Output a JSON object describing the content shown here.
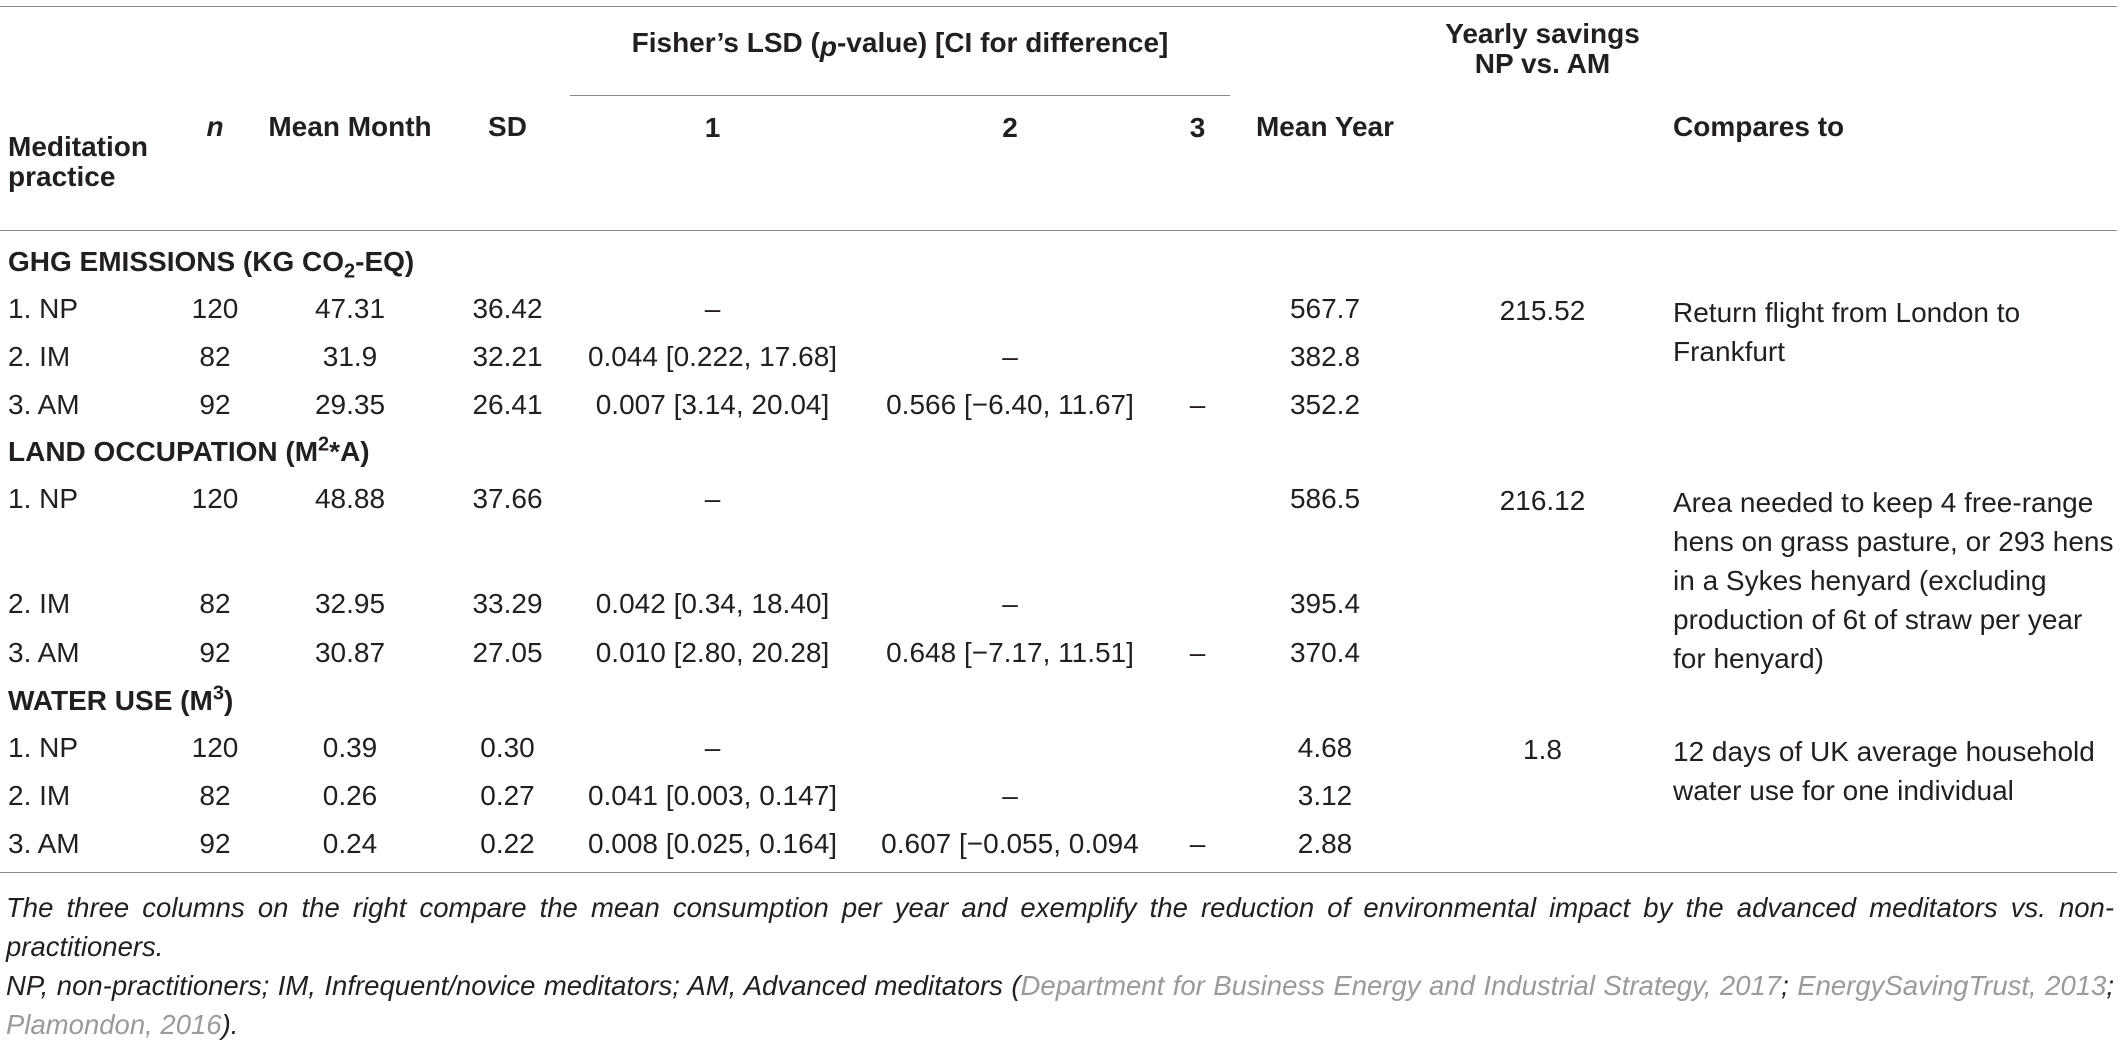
{
  "header": {
    "lsd_group": "Fisher’s LSD (",
    "lsd_p": "p",
    "lsd_tail": "-value) [CI for difference]",
    "yearly_savings_line1": "Yearly savings",
    "yearly_savings_line2": "NP vs. AM",
    "col_practice_line1": "Meditation",
    "col_practice_line2": "practice",
    "col_n": "n",
    "col_mean_month": "Mean Month",
    "col_sd": "SD",
    "col_1": "1",
    "col_2": "2",
    "col_3": "3",
    "col_mean_year": "Mean Year",
    "col_compares": "Compares to"
  },
  "sections": [
    {
      "title_pre": "GHG EMISSIONS (KG CO",
      "title_sub": "2",
      "title_post": "-EQ)",
      "rows": [
        {
          "practice": "1. NP",
          "n": "120",
          "mean_month": "47.31",
          "sd": "36.42",
          "c1": "–",
          "c2": "",
          "c3": "",
          "mean_year": "567.7"
        },
        {
          "practice": "2. IM",
          "n": "82",
          "mean_month": "31.9",
          "sd": "32.21",
          "c1": "0.044 [0.222, 17.68]",
          "c2": "–",
          "c3": "",
          "mean_year": "382.8"
        },
        {
          "practice": "3. AM",
          "n": "92",
          "mean_month": "29.35",
          "sd": "26.41",
          "c1": "0.007 [3.14, 20.04]",
          "c2": "0.566 [−6.40, 11.67]",
          "c3": "–",
          "mean_year": "352.2"
        }
      ],
      "savings": "215.52",
      "compares": "Return flight from London to Frankfurt"
    },
    {
      "title_pre": "LAND OCCUPATION (M",
      "title_sup": "2",
      "title_post": "*A)",
      "rows": [
        {
          "practice": "1. NP",
          "n": "120",
          "mean_month": "48.88",
          "sd": "37.66",
          "c1": "–",
          "c2": "",
          "c3": "",
          "mean_year": "586.5"
        },
        {
          "practice": "2. IM",
          "n": "82",
          "mean_month": "32.95",
          "sd": "33.29",
          "c1": "0.042 [0.34, 18.40]",
          "c2": "–",
          "c3": "",
          "mean_year": "395.4"
        },
        {
          "practice": "3. AM",
          "n": "92",
          "mean_month": "30.87",
          "sd": "27.05",
          "c1": "0.010 [2.80, 20.28]",
          "c2": "0.648 [−7.17, 11.51]",
          "c3": "–",
          "mean_year": "370.4"
        }
      ],
      "savings": "216.12",
      "compares": "Area needed to keep 4 free-range hens on grass pasture, or 293 hens in a Sykes henyard (excluding production of 6t of straw per year for henyard)"
    },
    {
      "title_pre": "WATER USE (M",
      "title_sup": "3",
      "title_post": ")",
      "rows": [
        {
          "practice": "1. NP",
          "n": "120",
          "mean_month": "0.39",
          "sd": "0.30",
          "c1": "–",
          "c2": "",
          "c3": "",
          "mean_year": "4.68"
        },
        {
          "practice": "2. IM",
          "n": "82",
          "mean_month": "0.26",
          "sd": "0.27",
          "c1": "0.041 [0.003, 0.147]",
          "c2": "–",
          "c3": "",
          "mean_year": "3.12"
        },
        {
          "practice": "3. AM",
          "n": "92",
          "mean_month": "0.24",
          "sd": "0.22",
          "c1": "0.008 [0.025, 0.164]",
          "c2": "0.607 [−0.055, 0.094",
          "c3": "–",
          "mean_year": "2.88"
        }
      ],
      "savings": "1.8",
      "compares": "12 days of UK average household water use for one individual"
    }
  ],
  "footnote": {
    "line1": "The three columns on the right compare the mean consumption per year and exemplify the reduction of environmental impact by the advanced meditators vs. non-practitioners.",
    "line2_pre": "NP,  non-practitioners; IM, Infrequent/novice meditators; AM, Advanced meditators (",
    "cite1": "Department for Business Energy and Industrial Strategy, 2017",
    "sep1": "; ",
    "cite2": "EnergySavingTrust, 2013",
    "sep2": "; ",
    "cite3": "Plamondon, 2016",
    "line2_post": ")."
  }
}
